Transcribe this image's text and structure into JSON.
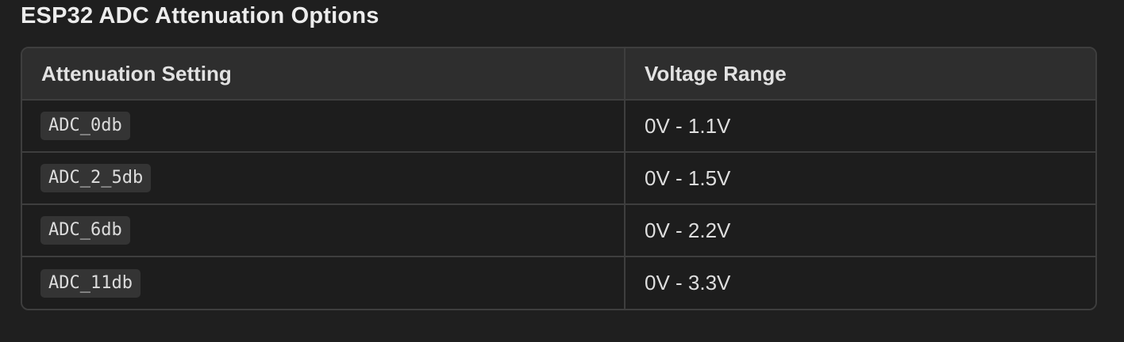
{
  "title": "ESP32 ADC Attenuation Options",
  "table": {
    "headers": [
      "Attenuation Setting",
      "Voltage Range"
    ],
    "rows": [
      {
        "setting": "ADC_0db",
        "range": "0V - 1.1V"
      },
      {
        "setting": "ADC_2_5db",
        "range": "0V - 1.5V"
      },
      {
        "setting": "ADC_6db",
        "range": "0V - 2.2V"
      },
      {
        "setting": "ADC_11db",
        "range": "0V - 3.3V"
      }
    ]
  },
  "colors": {
    "background": "#1f1f1f",
    "header_background": "#2e2e2e",
    "border": "#3e3e3e",
    "code_background": "#343434",
    "text": "#e8e8e8"
  }
}
